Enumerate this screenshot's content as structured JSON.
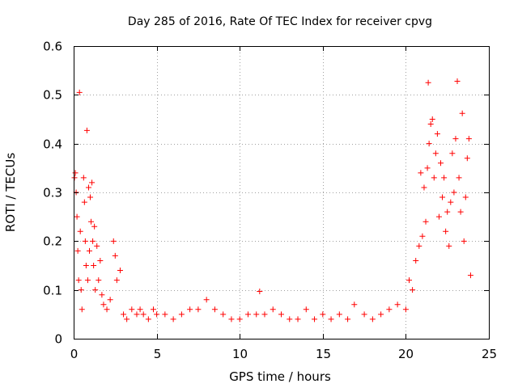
{
  "chart_data": {
    "type": "scatter",
    "title": "Day 285 of 2016, Rate Of TEC Index for receiver cpvg",
    "xlabel": "GPS time / hours",
    "ylabel": "ROTI / TECUs",
    "xlim": [
      0,
      25
    ],
    "ylim": [
      0,
      0.6
    ],
    "xticks": [
      0,
      5,
      10,
      15,
      20,
      25
    ],
    "yticks": [
      0,
      0.1,
      0.2,
      0.3,
      0.4,
      0.5,
      0.6
    ],
    "x_tick_labels": [
      "0",
      "5",
      "10",
      "15",
      "20",
      "25"
    ],
    "y_tick_labels": [
      "0",
      "0.1",
      "0.2",
      "0.3",
      "0.4",
      "0.5",
      "0.6"
    ],
    "grid": true,
    "marker": "plus",
    "color": "#ff0000",
    "series": [
      {
        "points": [
          [
            0.05,
            0.33
          ],
          [
            0.1,
            0.34
          ],
          [
            0.15,
            0.3
          ],
          [
            0.2,
            0.25
          ],
          [
            0.25,
            0.18
          ],
          [
            0.3,
            0.12
          ],
          [
            0.35,
            0.505
          ],
          [
            0.4,
            0.22
          ],
          [
            0.45,
            0.1
          ],
          [
            0.5,
            0.06
          ],
          [
            0.6,
            0.33
          ],
          [
            0.65,
            0.28
          ],
          [
            0.7,
            0.2
          ],
          [
            0.75,
            0.15
          ],
          [
            0.8,
            0.427
          ],
          [
            0.85,
            0.12
          ],
          [
            0.9,
            0.31
          ],
          [
            0.95,
            0.18
          ],
          [
            1.0,
            0.29
          ],
          [
            1.05,
            0.24
          ],
          [
            1.1,
            0.32
          ],
          [
            1.15,
            0.2
          ],
          [
            1.2,
            0.15
          ],
          [
            1.25,
            0.23
          ],
          [
            1.3,
            0.1
          ],
          [
            1.4,
            0.19
          ],
          [
            1.5,
            0.12
          ],
          [
            1.6,
            0.16
          ],
          [
            1.7,
            0.09
          ],
          [
            1.8,
            0.07
          ],
          [
            2.0,
            0.06
          ],
          [
            2.2,
            0.08
          ],
          [
            2.4,
            0.2
          ],
          [
            2.5,
            0.17
          ],
          [
            2.6,
            0.12
          ],
          [
            2.8,
            0.14
          ],
          [
            3.0,
            0.05
          ],
          [
            3.2,
            0.04
          ],
          [
            3.5,
            0.06
          ],
          [
            3.8,
            0.05
          ],
          [
            4.0,
            0.06
          ],
          [
            4.2,
            0.05
          ],
          [
            4.5,
            0.04
          ],
          [
            4.8,
            0.06
          ],
          [
            5.0,
            0.05
          ],
          [
            5.5,
            0.05
          ],
          [
            6.0,
            0.04
          ],
          [
            6.5,
            0.05
          ],
          [
            7.0,
            0.06
          ],
          [
            7.5,
            0.06
          ],
          [
            8.0,
            0.08
          ],
          [
            8.5,
            0.06
          ],
          [
            9.0,
            0.05
          ],
          [
            9.5,
            0.04
          ],
          [
            10.0,
            0.04
          ],
          [
            10.5,
            0.05
          ],
          [
            11.0,
            0.05
          ],
          [
            11.2,
            0.097
          ],
          [
            11.5,
            0.05
          ],
          [
            12.0,
            0.06
          ],
          [
            12.5,
            0.05
          ],
          [
            13.0,
            0.04
          ],
          [
            13.5,
            0.04
          ],
          [
            14.0,
            0.06
          ],
          [
            14.5,
            0.04
          ],
          [
            15.0,
            0.05
          ],
          [
            15.5,
            0.04
          ],
          [
            16.0,
            0.05
          ],
          [
            16.5,
            0.04
          ],
          [
            16.9,
            0.07
          ],
          [
            17.5,
            0.05
          ],
          [
            18.0,
            0.04
          ],
          [
            18.5,
            0.05
          ],
          [
            19.0,
            0.06
          ],
          [
            19.5,
            0.07
          ],
          [
            20.0,
            0.06
          ],
          [
            20.2,
            0.12
          ],
          [
            20.4,
            0.1
          ],
          [
            20.6,
            0.16
          ],
          [
            20.8,
            0.19
          ],
          [
            20.9,
            0.34
          ],
          [
            21.0,
            0.21
          ],
          [
            21.1,
            0.31
          ],
          [
            21.2,
            0.24
          ],
          [
            21.3,
            0.35
          ],
          [
            21.35,
            0.525
          ],
          [
            21.4,
            0.4
          ],
          [
            21.5,
            0.44
          ],
          [
            21.6,
            0.45
          ],
          [
            21.7,
            0.33
          ],
          [
            21.8,
            0.38
          ],
          [
            21.9,
            0.42
          ],
          [
            22.0,
            0.25
          ],
          [
            22.1,
            0.36
          ],
          [
            22.2,
            0.29
          ],
          [
            22.3,
            0.33
          ],
          [
            22.4,
            0.22
          ],
          [
            22.5,
            0.26
          ],
          [
            22.6,
            0.19
          ],
          [
            22.7,
            0.28
          ],
          [
            22.8,
            0.38
          ],
          [
            22.9,
            0.3
          ],
          [
            23.0,
            0.41
          ],
          [
            23.1,
            0.528
          ],
          [
            23.2,
            0.33
          ],
          [
            23.3,
            0.26
          ],
          [
            23.4,
            0.462
          ],
          [
            23.5,
            0.2
          ],
          [
            23.6,
            0.29
          ],
          [
            23.7,
            0.37
          ],
          [
            23.8,
            0.41
          ],
          [
            23.9,
            0.13
          ]
        ]
      }
    ]
  }
}
